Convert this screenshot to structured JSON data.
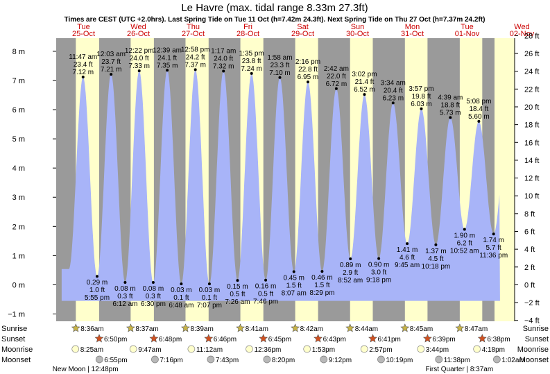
{
  "chart_data": {
    "type": "area",
    "title": "Le Havre (max. tidal range 8.33m 27.3ft)",
    "subtitle": "Times are CEST (UTC +2.0hrs). Last Spring Tide on Tue 11 Oct (h=7.42m 24.3ft). Next Spring Tide on Thu 27 Oct (h=7.37m 24.2ft)",
    "ylim_m": [
      -1.25,
      8.45
    ],
    "ylim_ft": [
      -4.1,
      27.72
    ],
    "m_ticks": [
      -1,
      0,
      1,
      2,
      3,
      4,
      5,
      6,
      7,
      8
    ],
    "m_tick_labels": [
      "−1 m",
      "0 m",
      "1 m",
      "2 m",
      "3 m",
      "4 m",
      "5 m",
      "6 m",
      "7 m",
      "8 m"
    ],
    "ft_ticks": [
      -4,
      -2,
      0,
      2,
      4,
      6,
      8,
      10,
      12,
      14,
      16,
      18,
      20,
      22,
      24,
      26,
      28
    ],
    "ft_tick_labels": [
      "−4 ft",
      "−2 ft",
      "0 ft",
      "2 ft",
      "4 ft",
      "6 ft",
      "8 ft",
      "10 ft",
      "12 ft",
      "14 ft",
      "16 ft",
      "18 ft",
      "20 ft",
      "22 ft",
      "24 ft",
      "26 ft",
      "28 ft"
    ],
    "x_start_day": "Tue 25-Oct 00:00",
    "days": [
      {
        "dow": "Tue",
        "date": "25-Oct",
        "sunrise_h": 8.6,
        "sunset_h": 18.83
      },
      {
        "dow": "Wed",
        "date": "26-Oct",
        "sunrise_h": 8.62,
        "sunset_h": 18.8
      },
      {
        "dow": "Thu",
        "date": "27-Oct",
        "sunrise_h": 8.65,
        "sunset_h": 18.77
      },
      {
        "dow": "Fri",
        "date": "28-Oct",
        "sunrise_h": 8.68,
        "sunset_h": 18.75
      },
      {
        "dow": "Sat",
        "date": "29-Oct",
        "sunrise_h": 8.7,
        "sunset_h": 18.72
      },
      {
        "dow": "Sun",
        "date": "30-Oct",
        "sunrise_h": 8.73,
        "sunset_h": 18.68
      },
      {
        "dow": "Mon",
        "date": "31-Oct",
        "sunrise_h": 8.75,
        "sunset_h": 18.65
      },
      {
        "dow": "Tue",
        "date": "01-Nov",
        "sunrise_h": 8.78,
        "sunset_h": 18.63
      },
      {
        "dow": "Wed",
        "date": "02-Nov",
        "sunrise_h": null,
        "sunset_h": null
      }
    ],
    "series": [
      {
        "points": [
          {
            "t": 11.78,
            "h": 7.12,
            "time": "11:47 am",
            "ft": "23.4 ft",
            "m": "7.12 m",
            "kind": "high"
          },
          {
            "t": 17.92,
            "h": 0.29,
            "time": "5:55 pm",
            "ft": "1.0 ft",
            "m": "0.29 m",
            "kind": "low"
          },
          {
            "t": 24.05,
            "h": 7.21,
            "time": "12:03 am",
            "ft": "23.7 ft",
            "m": "7.21 m",
            "kind": "high"
          },
          {
            "t": 30.2,
            "h": 0.08,
            "time": "6:12 am",
            "ft": "0.3 ft",
            "m": "0.08 m",
            "kind": "low"
          },
          {
            "t": 36.37,
            "h": 7.33,
            "time": "12:22 pm",
            "ft": "24.0 ft",
            "m": "7.33 m",
            "kind": "high"
          },
          {
            "t": 42.5,
            "h": 0.08,
            "time": "6:30 pm",
            "ft": "0.3 ft",
            "m": "0.08 m",
            "kind": "low"
          },
          {
            "t": 48.65,
            "h": 7.35,
            "time": "12:39 am",
            "ft": "24.1 ft",
            "m": "7.35 m",
            "kind": "high"
          },
          {
            "t": 54.8,
            "h": 0.03,
            "time": "6:48 am",
            "ft": "0.1 ft",
            "m": "0.03 m",
            "kind": "low"
          },
          {
            "t": 60.97,
            "h": 7.37,
            "time": "12:58 pm",
            "ft": "24.2 ft",
            "m": "7.37 m",
            "kind": "high"
          },
          {
            "t": 67.12,
            "h": 0.03,
            "time": "7:07 pm",
            "ft": "0.1 ft",
            "m": "0.03 m",
            "kind": "low"
          },
          {
            "t": 73.28,
            "h": 7.32,
            "time": "1:17 am",
            "ft": "24.0 ft",
            "m": "7.32 m",
            "kind": "high"
          },
          {
            "t": 79.43,
            "h": 0.15,
            "time": "7:26 am",
            "ft": "0.5 ft",
            "m": "0.15 m",
            "kind": "low"
          },
          {
            "t": 85.58,
            "h": 7.24,
            "time": "1:35 pm",
            "ft": "23.8 ft",
            "m": "7.24 m",
            "kind": "high"
          },
          {
            "t": 91.77,
            "h": 0.16,
            "time": "7:46 pm",
            "ft": "0.5 ft",
            "m": "0.16 m",
            "kind": "low"
          },
          {
            "t": 97.97,
            "h": 7.1,
            "time": "1:58 am",
            "ft": "23.3 ft",
            "m": "7.10 m",
            "kind": "high"
          },
          {
            "t": 104.12,
            "h": 0.45,
            "time": "8:07 am",
            "ft": "1.5 ft",
            "m": "0.45 m",
            "kind": "low"
          },
          {
            "t": 110.27,
            "h": 6.95,
            "time": "2:16 pm",
            "ft": "22.8 ft",
            "m": "6.95 m",
            "kind": "high"
          },
          {
            "t": 116.48,
            "h": 0.46,
            "time": "8:29 pm",
            "ft": "1.5 ft",
            "m": "0.46 m",
            "kind": "low"
          },
          {
            "t": 122.7,
            "h": 6.72,
            "time": "2:42 am",
            "ft": "22.0 ft",
            "m": "6.72 m",
            "kind": "high"
          },
          {
            "t": 128.87,
            "h": 0.89,
            "time": "8:52 am",
            "ft": "2.9 ft",
            "m": "0.89 m",
            "kind": "low"
          },
          {
            "t": 135.03,
            "h": 6.52,
            "time": "3:02 pm",
            "ft": "21.4 ft",
            "m": "6.52 m",
            "kind": "high"
          },
          {
            "t": 141.3,
            "h": 0.9,
            "time": "9:18 pm",
            "ft": "3.0 ft",
            "m": "0.90 m",
            "kind": "low"
          },
          {
            "t": 147.57,
            "h": 6.23,
            "time": "3:34 am",
            "ft": "20.4 ft",
            "m": "6.23 m",
            "kind": "high"
          },
          {
            "t": 153.75,
            "h": 1.41,
            "time": "9:45 am",
            "ft": "4.6 ft",
            "m": "1.41 m",
            "kind": "low"
          },
          {
            "t": 159.95,
            "h": 6.03,
            "time": "3:57 pm",
            "ft": "19.8 ft",
            "m": "6.03 m",
            "kind": "high"
          },
          {
            "t": 166.3,
            "h": 1.37,
            "time": "10:18 pm",
            "ft": "4.5 ft",
            "m": "1.37 m",
            "kind": "low"
          },
          {
            "t": 172.65,
            "h": 5.73,
            "time": "4:39 am",
            "ft": "18.8 ft",
            "m": "5.73 m",
            "kind": "high"
          },
          {
            "t": 178.87,
            "h": 1.9,
            "time": "10:52 am",
            "ft": "6.2 ft",
            "m": "1.90 m",
            "kind": "low"
          },
          {
            "t": 185.13,
            "h": 5.6,
            "time": "5:08 pm",
            "ft": "18.4 ft",
            "m": "5.60 m",
            "kind": "high"
          },
          {
            "t": 191.6,
            "h": 1.74,
            "time": "11:36 pm",
            "ft": "5.7 ft",
            "m": "1.74 m",
            "kind": "low"
          }
        ]
      }
    ]
  },
  "bottom_rows": {
    "row_labels": [
      "Sunrise",
      "Sunset",
      "Moonrise",
      "Moonset"
    ],
    "sunrise": [
      {
        "t": 8.6,
        "text": "8:36am"
      },
      {
        "t": 32.62,
        "text": "8:37am"
      },
      {
        "t": 56.65,
        "text": "8:39am"
      },
      {
        "t": 80.68,
        "text": "8:41am"
      },
      {
        "t": 104.7,
        "text": "8:42am"
      },
      {
        "t": 128.73,
        "text": "8:44am"
      },
      {
        "t": 152.75,
        "text": "8:45am"
      },
      {
        "t": 176.78,
        "text": "8:47am"
      }
    ],
    "sunset": [
      {
        "t": 18.83,
        "text": "6:50pm"
      },
      {
        "t": 42.8,
        "text": "6:48pm"
      },
      {
        "t": 66.77,
        "text": "6:46pm"
      },
      {
        "t": 90.75,
        "text": "6:45pm"
      },
      {
        "t": 114.72,
        "text": "6:43pm"
      },
      {
        "t": 138.68,
        "text": "6:41pm"
      },
      {
        "t": 162.65,
        "text": "6:39pm"
      },
      {
        "t": 186.63,
        "text": "6:38pm"
      }
    ],
    "moonrise": [
      {
        "t": 8.42,
        "text": "8:25am"
      },
      {
        "t": 33.78,
        "text": "9:47am"
      },
      {
        "t": 59.2,
        "text": "11:12am"
      },
      {
        "t": 84.6,
        "text": "12:36pm"
      },
      {
        "t": 109.88,
        "text": "1:53pm"
      },
      {
        "t": 134.95,
        "text": "2:57pm"
      },
      {
        "t": 159.73,
        "text": "3:44pm"
      },
      {
        "t": 184.3,
        "text": "4:18pm"
      }
    ],
    "moonset": [
      {
        "t": 18.92,
        "text": "6:55pm"
      },
      {
        "t": 43.27,
        "text": "7:16pm"
      },
      {
        "t": 67.72,
        "text": "7:43pm"
      },
      {
        "t": 92.33,
        "text": "8:20pm"
      },
      {
        "t": 117.2,
        "text": "9:12pm"
      },
      {
        "t": 142.32,
        "text": "10:19pm"
      },
      {
        "t": 167.63,
        "text": "11:38pm"
      },
      {
        "t": 193.03,
        "text": "1:02am"
      }
    ],
    "moon_phases": [
      {
        "t": 12.8,
        "text": "New Moon | 12:48pm"
      },
      {
        "t": 176.62,
        "text": "First Quarter | 8:37am"
      }
    ]
  },
  "colors": {
    "night": "#9a9a9a",
    "day": "#ffffcc",
    "water": "#a8b4f8",
    "day_label": "#cc0000",
    "sun_star": "#c8b448",
    "sunset_star": "#d05020",
    "moonrise_disc": "#ffffcc",
    "moonset_disc": "#b8b8b8"
  }
}
